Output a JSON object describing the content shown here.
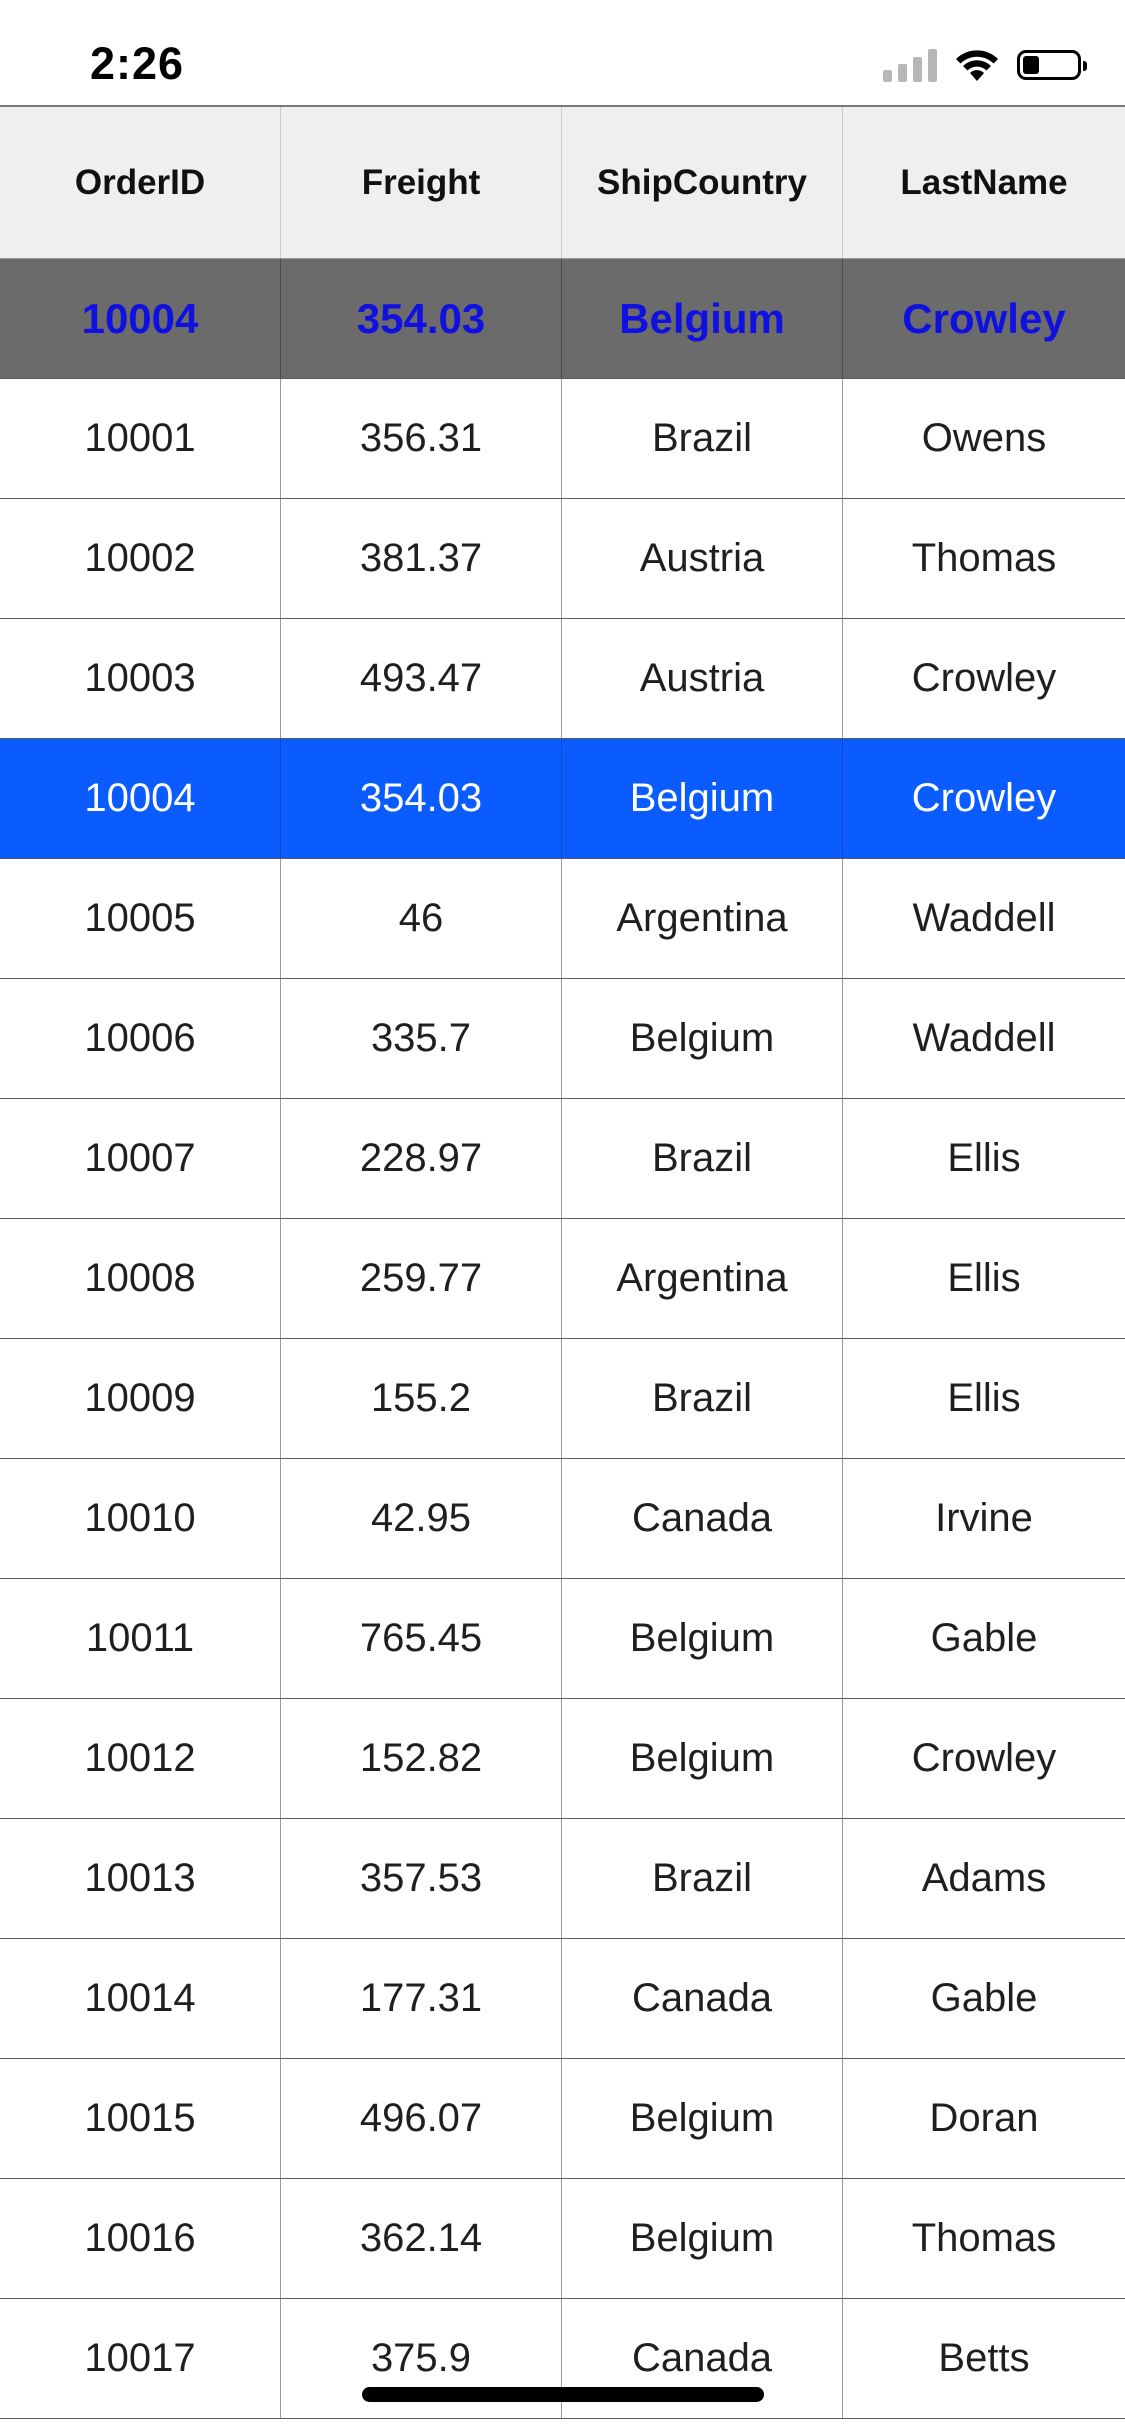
{
  "status_bar": {
    "time": "2:26"
  },
  "grid": {
    "columns": [
      "OrderID",
      "Freight",
      "ShipCountry",
      "LastName"
    ],
    "frozen_row": [
      "10004",
      "354.03",
      "Belgium",
      "Crowley"
    ],
    "selected_index": 3,
    "rows": [
      [
        "10001",
        "356.31",
        "Brazil",
        "Owens"
      ],
      [
        "10002",
        "381.37",
        "Austria",
        "Thomas"
      ],
      [
        "10003",
        "493.47",
        "Austria",
        "Crowley"
      ],
      [
        "10004",
        "354.03",
        "Belgium",
        "Crowley"
      ],
      [
        "10005",
        "46",
        "Argentina",
        "Waddell"
      ],
      [
        "10006",
        "335.7",
        "Belgium",
        "Waddell"
      ],
      [
        "10007",
        "228.97",
        "Brazil",
        "Ellis"
      ],
      [
        "10008",
        "259.77",
        "Argentina",
        "Ellis"
      ],
      [
        "10009",
        "155.2",
        "Brazil",
        "Ellis"
      ],
      [
        "10010",
        "42.95",
        "Canada",
        "Irvine"
      ],
      [
        "10011",
        "765.45",
        "Belgium",
        "Gable"
      ],
      [
        "10012",
        "152.82",
        "Belgium",
        "Crowley"
      ],
      [
        "10013",
        "357.53",
        "Brazil",
        "Adams"
      ],
      [
        "10014",
        "177.31",
        "Canada",
        "Gable"
      ],
      [
        "10015",
        "496.07",
        "Belgium",
        "Doran"
      ],
      [
        "10016",
        "362.14",
        "Belgium",
        "Thomas"
      ],
      [
        "10017",
        "375.9",
        "Canada",
        "Betts"
      ]
    ]
  },
  "colors": {
    "header_bg": "#efefef",
    "frozen_row_bg": "#6b6b6b",
    "frozen_row_text": "#1010e0",
    "selected_row_bg": "#0a5cff",
    "selected_row_text": "#ffffff"
  }
}
